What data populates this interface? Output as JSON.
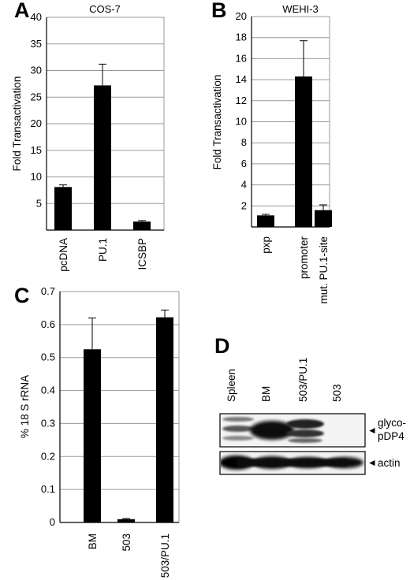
{
  "chart_data": [
    {
      "panel": "A",
      "type": "bar",
      "title": "COS-7",
      "xlabel": "",
      "ylabel": "Fold Transactivation",
      "categories": [
        "pcDNA",
        "PU.1",
        "ICSBP"
      ],
      "values": [
        8.1,
        27.2,
        1.6
      ],
      "errors": [
        0.4,
        4.0,
        0.2
      ],
      "ylim": [
        0,
        40
      ],
      "yticks": [
        5,
        10,
        15,
        20,
        25,
        30,
        35,
        40
      ],
      "grid": true
    },
    {
      "panel": "B",
      "type": "bar",
      "title": "WEHI-3",
      "xlabel": "",
      "ylabel": "Fold Transactivation",
      "categories": [
        "pxp",
        "promoter",
        "mut. PU.1-site"
      ],
      "values": [
        1.1,
        14.3,
        1.6
      ],
      "errors": [
        0.1,
        3.4,
        0.5
      ],
      "ylim": [
        0,
        20
      ],
      "yticks": [
        2,
        4,
        6,
        8,
        10,
        12,
        14,
        16,
        18,
        20
      ],
      "grid": true
    },
    {
      "panel": "C",
      "type": "bar",
      "title": "",
      "xlabel": "",
      "ylabel": "% 18 S rRNA",
      "categories": [
        "BM",
        "503",
        "503/PU.1"
      ],
      "values": [
        0.525,
        0.01,
        0.622
      ],
      "errors": [
        0.095,
        0.002,
        0.022
      ],
      "ylim": [
        0,
        0.7
      ],
      "yticks": [
        "0",
        "0.1",
        "0.2",
        "0.3",
        "0.4",
        "0.5",
        "0.6",
        "0.7"
      ],
      "grid": true
    }
  ],
  "blot": {
    "panel": "D",
    "lanes": [
      "Spleen",
      "BM",
      "503/PU.1",
      "503"
    ],
    "label_top": "glyco-",
    "label_bottom": "pDP4",
    "actin_label": "actin",
    "arrow_glyph": "◄"
  }
}
